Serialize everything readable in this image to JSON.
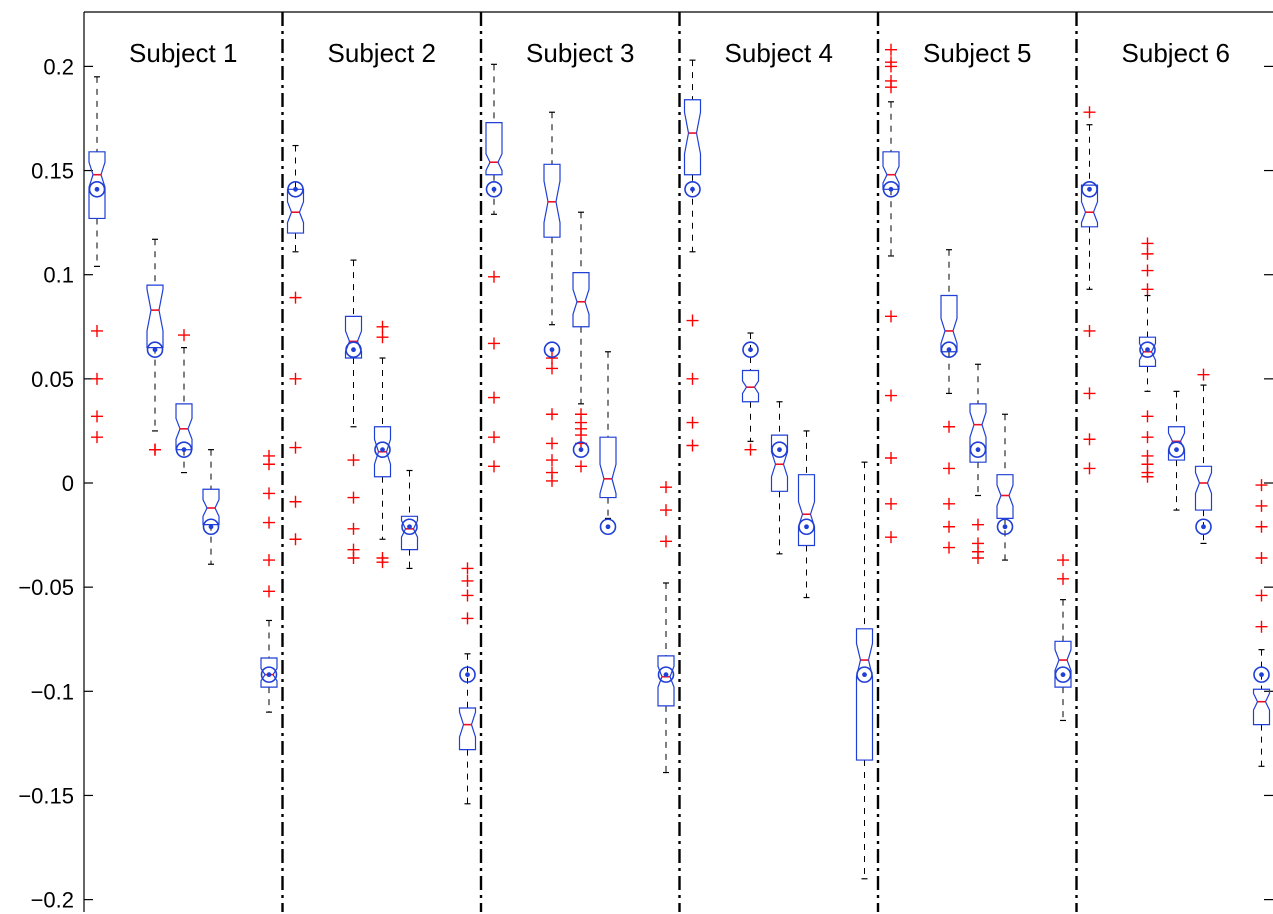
{
  "chart_data": {
    "type": "box",
    "ylim": [
      -0.205,
      0.228
    ],
    "yticks": [
      {
        "value": 0.2,
        "label": "0.2"
      },
      {
        "value": 0.15,
        "label": "0.15"
      },
      {
        "value": 0.1,
        "label": "0.1"
      },
      {
        "value": 0.05,
        "label": "0.05"
      },
      {
        "value": 0,
        "label": "0"
      },
      {
        "value": -0.05,
        "label": "−0.05"
      },
      {
        "value": -0.1,
        "label": "−0.1"
      },
      {
        "value": -0.15,
        "label": "−0.15"
      },
      {
        "value": -0.2,
        "label": "−0.2"
      }
    ],
    "grid": false,
    "colors": {
      "box": "#1f3fd6",
      "median": "#e8102a",
      "outlier": "#ff0000",
      "whisker": "#000000",
      "separator": "#000000"
    },
    "groups": [
      {
        "label": "Subject 1",
        "boxes": [
          {
            "q1": 0.127,
            "median": 0.148,
            "q3": 0.159,
            "wlo": 0.104,
            "whi": 0.195,
            "notch": 0.006,
            "ref": 0.141,
            "outliers": [
              0.073,
              0.05,
              0.032,
              0.022
            ]
          },
          {
            "q1": 0.065,
            "median": 0.083,
            "q3": 0.095,
            "wlo": 0.025,
            "whi": 0.117,
            "notch": 0.01,
            "ref": 0.064,
            "outliers": [
              0.016,
              0.016
            ]
          },
          {
            "q1": 0.016,
            "median": 0.026,
            "q3": 0.038,
            "wlo": 0.005,
            "whi": 0.065,
            "notch": 0.005,
            "ref": 0.016,
            "outliers": [
              0.071
            ]
          },
          {
            "q1": -0.02,
            "median": -0.012,
            "q3": -0.003,
            "wlo": -0.039,
            "whi": 0.016,
            "notch": 0.004,
            "ref": -0.021,
            "outliers": []
          },
          {
            "q1": -0.098,
            "median": -0.092,
            "q3": -0.084,
            "wlo": -0.11,
            "whi": -0.066,
            "notch": 0.003,
            "ref": -0.092,
            "outliers": [
              0.013,
              0.009,
              -0.005,
              -0.019,
              -0.037,
              -0.052
            ]
          }
        ]
      },
      {
        "label": "Subject 2",
        "boxes": [
          {
            "q1": 0.12,
            "median": 0.13,
            "q3": 0.141,
            "wlo": 0.111,
            "whi": 0.162,
            "notch": 0.005,
            "ref": 0.141,
            "outliers": [
              0.089,
              0.05,
              0.017,
              -0.009,
              -0.027
            ]
          },
          {
            "q1": 0.06,
            "median": 0.068,
            "q3": 0.08,
            "wlo": 0.027,
            "whi": 0.107,
            "notch": 0.005,
            "ref": 0.064,
            "outliers": [
              0.011,
              -0.007,
              -0.022,
              -0.032,
              -0.036
            ]
          },
          {
            "q1": 0.003,
            "median": 0.015,
            "q3": 0.027,
            "wlo": -0.027,
            "whi": 0.06,
            "notch": 0.006,
            "ref": 0.016,
            "outliers": [
              0.075,
              0.07,
              -0.036,
              -0.038
            ]
          },
          {
            "q1": -0.032,
            "median": -0.022,
            "q3": -0.016,
            "wlo": -0.041,
            "whi": 0.006,
            "notch": 0.004,
            "ref": -0.021,
            "outliers": []
          },
          {
            "q1": -0.128,
            "median": -0.116,
            "q3": -0.108,
            "wlo": -0.154,
            "whi": -0.082,
            "notch": 0.006,
            "ref": -0.092,
            "outliers": [
              -0.041,
              -0.047,
              -0.054,
              -0.065
            ]
          }
        ]
      },
      {
        "label": "Subject 3",
        "boxes": [
          {
            "q1": 0.148,
            "median": 0.154,
            "q3": 0.173,
            "wlo": 0.129,
            "whi": 0.201,
            "notch": 0.004,
            "ref": 0.141,
            "outliers": [
              0.099,
              0.067,
              0.041,
              0.022,
              0.008
            ]
          },
          {
            "q1": 0.118,
            "median": 0.135,
            "q3": 0.153,
            "wlo": 0.076,
            "whi": 0.178,
            "notch": 0.01,
            "ref": 0.064,
            "outliers": [
              0.06,
              0.055,
              0.033,
              0.019,
              0.011,
              0.005,
              0.001
            ]
          },
          {
            "q1": 0.075,
            "median": 0.087,
            "q3": 0.101,
            "wlo": 0.038,
            "whi": 0.13,
            "notch": 0.006,
            "ref": 0.016,
            "outliers": [
              0.033,
              0.029,
              0.026,
              0.023,
              0.019,
              0.008
            ]
          },
          {
            "q1": -0.007,
            "median": 0.002,
            "q3": 0.022,
            "wlo": -0.017,
            "whi": 0.063,
            "notch": 0.007,
            "ref": -0.021,
            "outliers": []
          },
          {
            "q1": -0.107,
            "median": -0.093,
            "q3": -0.083,
            "wlo": -0.139,
            "whi": -0.048,
            "notch": 0.005,
            "ref": -0.092,
            "outliers": [
              -0.002,
              -0.013,
              -0.028
            ]
          }
        ]
      },
      {
        "label": "Subject 4",
        "boxes": [
          {
            "q1": 0.148,
            "median": 0.168,
            "q3": 0.184,
            "wlo": 0.111,
            "whi": 0.203,
            "notch": 0.01,
            "ref": 0.141,
            "outliers": [
              0.078,
              0.05,
              0.029,
              0.018
            ]
          },
          {
            "q1": 0.039,
            "median": 0.046,
            "q3": 0.054,
            "wlo": 0.02,
            "whi": 0.072,
            "notch": 0.003,
            "ref": 0.064,
            "outliers": [
              0.016
            ]
          },
          {
            "q1": -0.004,
            "median": 0.009,
            "q3": 0.023,
            "wlo": -0.034,
            "whi": 0.039,
            "notch": 0.006,
            "ref": 0.016,
            "outliers": []
          },
          {
            "q1": -0.03,
            "median": -0.015,
            "q3": 0.004,
            "wlo": -0.055,
            "whi": 0.025,
            "notch": 0.006,
            "ref": -0.021,
            "outliers": []
          },
          {
            "q1": -0.133,
            "median": -0.085,
            "q3": -0.07,
            "wlo": -0.19,
            "whi": 0.01,
            "notch": 0.008,
            "ref": -0.092,
            "outliers": []
          }
        ]
      },
      {
        "label": "Subject 5",
        "boxes": [
          {
            "q1": 0.141,
            "median": 0.148,
            "q3": 0.159,
            "wlo": 0.109,
            "whi": 0.183,
            "notch": 0.004,
            "ref": 0.141,
            "outliers": [
              0.208,
              0.202,
              0.2,
              0.193,
              0.19,
              0.08,
              0.042,
              0.012,
              -0.01,
              -0.026
            ]
          },
          {
            "q1": 0.063,
            "median": 0.073,
            "q3": 0.09,
            "wlo": 0.043,
            "whi": 0.112,
            "notch": 0.006,
            "ref": 0.064,
            "outliers": [
              0.027,
              0.007,
              -0.01,
              -0.021,
              -0.031
            ]
          },
          {
            "q1": 0.01,
            "median": 0.028,
            "q3": 0.038,
            "wlo": -0.006,
            "whi": 0.057,
            "notch": 0.006,
            "ref": 0.016,
            "outliers": [
              -0.02,
              -0.029,
              -0.033,
              -0.036
            ]
          },
          {
            "q1": -0.017,
            "median": -0.006,
            "q3": 0.004,
            "wlo": -0.037,
            "whi": 0.033,
            "notch": 0.005,
            "ref": -0.021,
            "outliers": []
          },
          {
            "q1": -0.098,
            "median": -0.085,
            "q3": -0.076,
            "wlo": -0.114,
            "whi": -0.056,
            "notch": 0.005,
            "ref": -0.092,
            "outliers": [
              -0.037,
              -0.046
            ]
          }
        ]
      },
      {
        "label": "Subject 6",
        "boxes": [
          {
            "q1": 0.123,
            "median": 0.13,
            "q3": 0.143,
            "wlo": 0.093,
            "whi": 0.172,
            "notch": 0.005,
            "ref": 0.141,
            "outliers": [
              0.178,
              0.073,
              0.043,
              0.021,
              0.007
            ]
          },
          {
            "q1": 0.056,
            "median": 0.063,
            "q3": 0.07,
            "wlo": 0.044,
            "whi": 0.09,
            "notch": 0.004,
            "ref": 0.064,
            "outliers": [
              0.115,
              0.11,
              0.102,
              0.093,
              0.032,
              0.022,
              0.013,
              0.009,
              0.005,
              0.003
            ]
          },
          {
            "q1": 0.011,
            "median": 0.02,
            "q3": 0.027,
            "wlo": -0.013,
            "whi": 0.044,
            "notch": 0.004,
            "ref": 0.016,
            "outliers": []
          },
          {
            "q1": -0.013,
            "median": 0.0,
            "q3": 0.008,
            "wlo": -0.029,
            "whi": 0.047,
            "notch": 0.005,
            "ref": -0.021,
            "outliers": [
              0.052
            ]
          },
          {
            "q1": -0.116,
            "median": -0.105,
            "q3": -0.099,
            "wlo": -0.136,
            "whi": -0.08,
            "notch": 0.004,
            "ref": -0.092,
            "outliers": [
              -0.001,
              -0.011,
              -0.021,
              -0.036,
              -0.054,
              -0.069
            ]
          }
        ]
      }
    ]
  }
}
